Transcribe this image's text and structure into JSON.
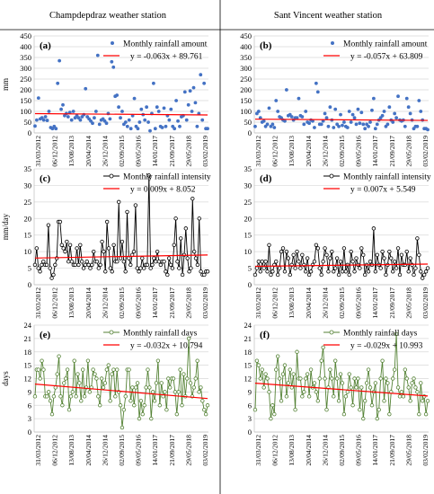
{
  "headers": [
    "Champdepdraz weather station",
    "Sant Vincent weather station"
  ],
  "x_tick_labels": [
    "31/03/2012",
    "06/12/2012",
    "13/08/2013",
    "20/04/2014",
    "26/12/2014",
    "02/09/2015",
    "09/05/2016",
    "14/01/2017",
    "21/09/2017",
    "29/05/2018",
    "03/02/2019"
  ],
  "colors": {
    "amount": "#4472c4",
    "intensity": "#000000",
    "days": "#548235",
    "trend": "#ff0000"
  },
  "chart_data": [
    {
      "panel": "(a)",
      "type": "scatter",
      "station": "Champdepdraz",
      "ylabel": "mm",
      "ylim": [
        0,
        450
      ],
      "yticks": [
        0,
        50,
        100,
        150,
        200,
        250,
        300,
        350,
        400,
        450
      ],
      "series": [
        {
          "name": "Monthly rainfall amount",
          "values": [
            32,
            60,
            162,
            65,
            70,
            60,
            75,
            58,
            100,
            25,
            20,
            30,
            20,
            230,
            335,
            110,
            130,
            80,
            90,
            75,
            95,
            60,
            100,
            70,
            80,
            70,
            60,
            75,
            85,
            205,
            75,
            65,
            55,
            45,
            70,
            100,
            360,
            40,
            60,
            65,
            55,
            45,
            90,
            65,
            330,
            305,
            170,
            175,
            120,
            70,
            100,
            40,
            50,
            30,
            60,
            20,
            80,
            160,
            30,
            20,
            50,
            110,
            85,
            60,
            120,
            50,
            10,
            90,
            230,
            20,
            120,
            100,
            30,
            25,
            115,
            30,
            80,
            60,
            110,
            30,
            20,
            150,
            55,
            30,
            75,
            80,
            190,
            60,
            130,
            195,
            100,
            210,
            140,
            30,
            90,
            270,
            60,
            230,
            20,
            20
          ]
        },
        {
          "name": "y = -0.063x + 89.761",
          "type": "line",
          "trend": {
            "slope": -0.063,
            "intercept": 89.761
          }
        }
      ]
    },
    {
      "panel": "(b)",
      "type": "scatter",
      "station": "Sant Vincent",
      "ylabel": "",
      "ylim": [
        0,
        450
      ],
      "yticks": [
        0,
        50,
        100,
        150,
        200,
        250,
        300,
        350,
        400,
        450
      ],
      "series": [
        {
          "name": "Monthly rainfall amount",
          "values": [
            30,
            90,
            100,
            70,
            50,
            55,
            30,
            40,
            115,
            30,
            40,
            25,
            150,
            100,
            75,
            70,
            60,
            55,
            200,
            80,
            85,
            75,
            60,
            70,
            70,
            160,
            80,
            75,
            40,
            100,
            50,
            45,
            60,
            55,
            25,
            230,
            190,
            40,
            40,
            55,
            90,
            70,
            30,
            120,
            60,
            25,
            110,
            40,
            30,
            85,
            35,
            50,
            30,
            25,
            100,
            50,
            85,
            70,
            40,
            110,
            45,
            95,
            40,
            20,
            40,
            30,
            50,
            105,
            160,
            20,
            40,
            60,
            70,
            80,
            100,
            30,
            40,
            120,
            60,
            50,
            90,
            70,
            170,
            60,
            55,
            60,
            30,
            160,
            120,
            90,
            60,
            20,
            30,
            30,
            150,
            100,
            60,
            20,
            20,
            15
          ]
        },
        {
          "name": "y = -0.057x + 63.809",
          "type": "line",
          "trend": {
            "slope": -0.057,
            "intercept": 63.809
          }
        }
      ]
    },
    {
      "panel": "(c)",
      "type": "line",
      "station": "Champdepdraz",
      "ylabel": "mm/day",
      "ylim": [
        0,
        35
      ],
      "yticks": [
        0,
        5,
        10,
        15,
        20,
        25,
        30,
        35
      ],
      "series": [
        {
          "name": "Monthly rainfall intensity",
          "values": [
            6,
            11,
            5,
            4,
            6,
            7,
            6,
            6,
            18,
            5,
            2,
            3,
            6,
            8,
            19,
            19,
            12,
            11,
            10,
            13,
            7,
            12,
            7,
            6,
            6,
            11,
            6,
            12,
            7,
            5,
            6,
            7,
            6,
            5,
            6,
            10,
            7,
            7,
            5,
            6,
            13,
            10,
            4,
            19,
            11,
            5,
            4,
            12,
            7,
            7,
            25,
            8,
            13,
            7,
            4,
            22,
            8,
            6,
            9,
            10,
            24,
            5,
            4,
            5,
            8,
            5,
            6,
            6,
            33,
            5,
            6,
            8,
            7,
            10,
            7,
            6,
            7,
            7,
            4,
            3,
            8,
            6,
            5,
            12,
            20,
            7,
            5,
            14,
            3,
            9,
            17,
            8,
            4,
            5,
            26,
            10,
            8,
            6,
            20,
            4,
            3,
            3,
            4,
            4
          ]
        },
        {
          "name": "y = 0.009x + 8.052",
          "trend": {
            "slope": 0.009,
            "intercept": 8.052
          }
        }
      ]
    },
    {
      "panel": "(d)",
      "type": "line",
      "station": "Sant Vincent",
      "ylabel": "",
      "ylim": [
        0,
        35
      ],
      "yticks": [
        0,
        5,
        10,
        15,
        20,
        25,
        30,
        35
      ],
      "series": [
        {
          "name": "Monthly rainfall intensity",
          "values": [
            3,
            5,
            7,
            4,
            7,
            5,
            7,
            4,
            12,
            3,
            4,
            6,
            7,
            3,
            5,
            10,
            11,
            4,
            10,
            8,
            3,
            6,
            9,
            5,
            10,
            7,
            5,
            9,
            6,
            4,
            8,
            3,
            4,
            6,
            7,
            12,
            11,
            5,
            3,
            7,
            11,
            9,
            4,
            8,
            10,
            4,
            5,
            8,
            3,
            7,
            4,
            11,
            4,
            6,
            3,
            10,
            7,
            4,
            8,
            6,
            5,
            11,
            9,
            3,
            6,
            4,
            7,
            6,
            17,
            4,
            9,
            6,
            5,
            10,
            8,
            3,
            6,
            10,
            8,
            4,
            7,
            5,
            11,
            3,
            9,
            6,
            6,
            10,
            4,
            8,
            6,
            3,
            5,
            14,
            9,
            4,
            2,
            3,
            4,
            5
          ]
        },
        {
          "name": "y = 0.007x + 5.549",
          "trend": {
            "slope": 0.007,
            "intercept": 5.549
          }
        }
      ]
    },
    {
      "panel": "(e)",
      "type": "line",
      "station": "Champdepdraz",
      "ylabel": "days",
      "ylim": [
        0,
        24
      ],
      "yticks": [
        0,
        3,
        6,
        9,
        12,
        15,
        18,
        21,
        24
      ],
      "series": [
        {
          "name": "Monthly rainfall days",
          "values": [
            8,
            14,
            14,
            12,
            16,
            14,
            8,
            8,
            9,
            7,
            4,
            8,
            10,
            13,
            17,
            8,
            6,
            11,
            12,
            14,
            5,
            8,
            9,
            16,
            8,
            13,
            11,
            7,
            14,
            8,
            10,
            16,
            9,
            10,
            14,
            13,
            12,
            8,
            6,
            12,
            10,
            11,
            14,
            15,
            7,
            13,
            14,
            8,
            14,
            9,
            6,
            1,
            5,
            8,
            14,
            14,
            7,
            10,
            6,
            10,
            11,
            3,
            7,
            4,
            6,
            10,
            14,
            10,
            3,
            9,
            7,
            11,
            16,
            6,
            11,
            8,
            9,
            5,
            12,
            10,
            12,
            12,
            9,
            4,
            9,
            14,
            6,
            13,
            8,
            12,
            21,
            11,
            8,
            10,
            12,
            16,
            9,
            10,
            7,
            5,
            4,
            6
          ]
        },
        {
          "name": "y = -0.032x + 10.794",
          "trend": {
            "slope": -0.032,
            "intercept": 10.794
          }
        }
      ]
    },
    {
      "panel": "(f)",
      "type": "line",
      "station": "Sant Vincent",
      "ylabel": "",
      "ylim": [
        0,
        24
      ],
      "yticks": [
        0,
        3,
        6,
        9,
        12,
        15,
        18,
        21,
        24
      ],
      "series": [
        {
          "name": "Monthly rainfall days",
          "values": [
            5,
            16,
            15,
            12,
            14,
            10,
            13,
            12,
            9,
            3,
            6,
            4,
            14,
            17,
            12,
            7,
            13,
            15,
            8,
            11,
            14,
            10,
            13,
            5,
            18,
            12,
            12,
            8,
            9,
            12,
            13,
            8,
            14,
            10,
            11,
            9,
            7,
            12,
            16,
            19,
            12,
            5,
            10,
            14,
            12,
            8,
            16,
            12,
            7,
            13,
            11,
            4,
            8,
            9,
            13,
            10,
            6,
            12,
            10,
            12,
            5,
            10,
            3,
            7,
            11,
            14,
            10,
            6,
            9,
            11,
            3,
            5,
            12,
            16,
            7,
            12,
            11,
            4,
            9,
            12,
            14,
            22,
            10,
            8,
            9,
            8,
            14,
            12,
            10,
            7,
            11,
            12,
            10,
            9,
            4,
            11,
            7,
            8,
            4,
            7
          ]
        },
        {
          "name": "y = -0.029x + 10.993",
          "trend": {
            "slope": -0.029,
            "intercept": 10.993
          }
        }
      ]
    }
  ]
}
